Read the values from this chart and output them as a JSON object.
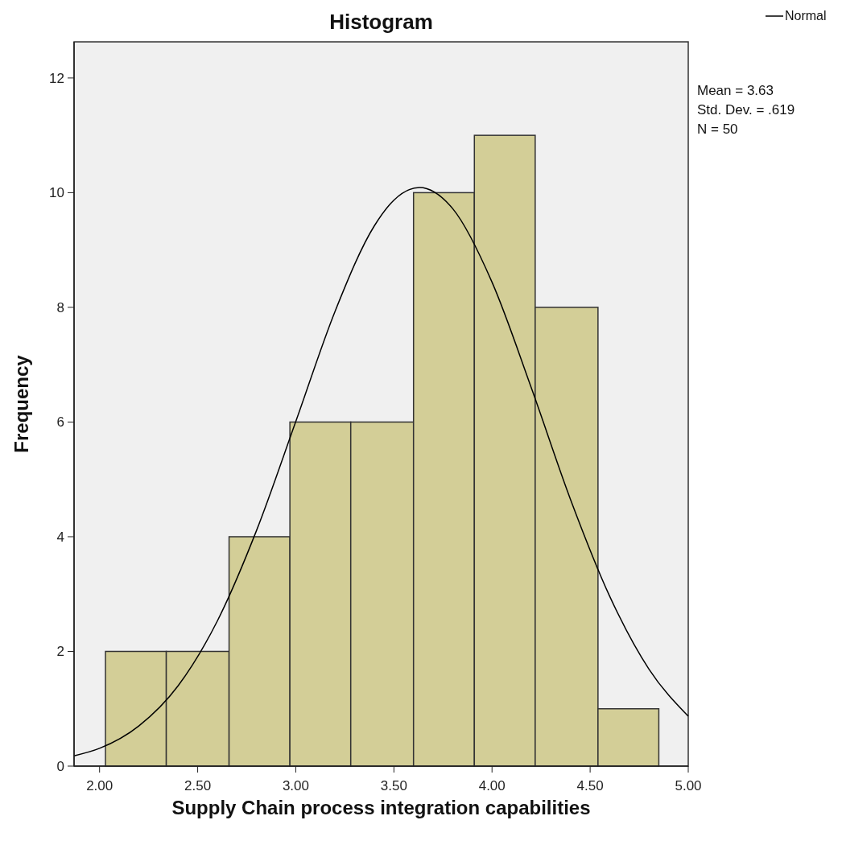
{
  "chart_data": {
    "type": "histogram",
    "title": "Histogram",
    "xlabel": "Supply Chain process integration capabilities",
    "ylabel": "Frequency",
    "bins": [
      2.03,
      2.34,
      2.66,
      2.97,
      3.28,
      3.6,
      3.91,
      4.22,
      4.54,
      4.85
    ],
    "values": [
      2,
      2,
      4,
      6,
      6,
      10,
      11,
      8,
      1
    ],
    "color": "#d3ce97",
    "series": [
      {
        "type": "line",
        "name": "Normal",
        "color": "#000000",
        "x": [
          1.87,
          2.0,
          2.2,
          2.4,
          2.6,
          2.8,
          3.0,
          3.2,
          3.4,
          3.5,
          3.63,
          3.8,
          4.0,
          4.2,
          4.4,
          4.6,
          4.8,
          5.0
        ],
        "values": [
          0.18,
          0.31,
          0.7,
          1.4,
          2.53,
          4.11,
          6.01,
          7.93,
          9.42,
          9.87,
          10.09,
          9.72,
          8.44,
          6.6,
          4.65,
          2.96,
          1.69,
          0.87
        ]
      }
    ],
    "xlim": [
      1.87,
      5.0
    ],
    "ylim": [
      0,
      12.63
    ],
    "xticks": [
      {
        "value": 2,
        "label": "2.00"
      },
      {
        "value": 2.5,
        "label": "2.50"
      },
      {
        "value": 3,
        "label": "3.00"
      },
      {
        "value": 3.5,
        "label": "3.50"
      },
      {
        "value": 4,
        "label": "4.00"
      },
      {
        "value": 4.5,
        "label": "4.50"
      },
      {
        "value": 5,
        "label": "5.00"
      }
    ],
    "yticks": [
      0,
      2,
      4,
      6,
      8,
      10,
      12
    ],
    "legend": "top right",
    "annotations": [
      "Mean = 3.63",
      "Std. Dev. = .619",
      "N = 50"
    ]
  }
}
